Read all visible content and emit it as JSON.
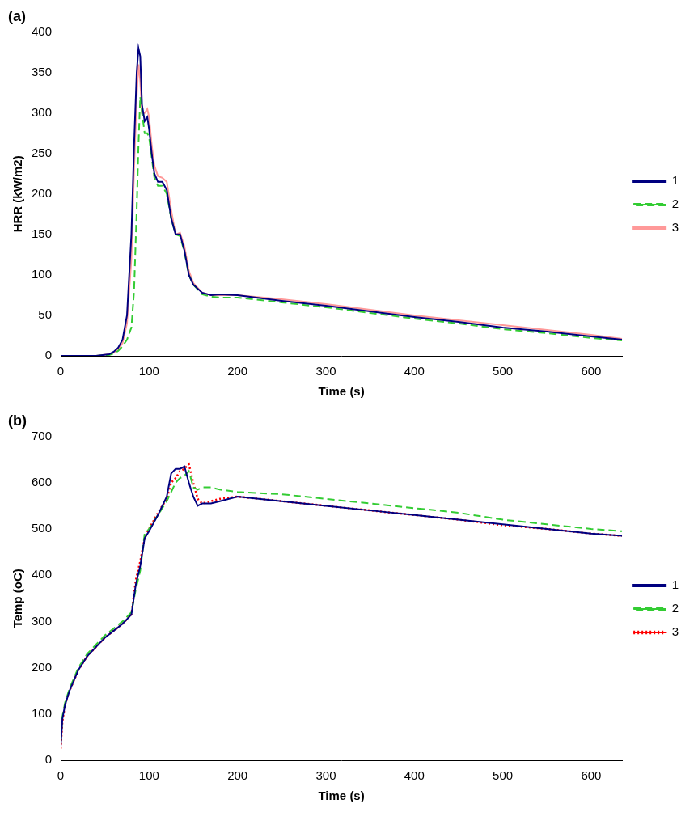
{
  "chart_data": [
    {
      "type": "line",
      "panel": "(a)",
      "x_label": "Time (s)",
      "y_label": "HRR (kW/m2)",
      "x": [
        0,
        20,
        40,
        55,
        60,
        65,
        70,
        75,
        80,
        83,
        86,
        88,
        90,
        92,
        95,
        98,
        100,
        103,
        106,
        110,
        115,
        120,
        125,
        130,
        135,
        140,
        145,
        150,
        160,
        170,
        180,
        200,
        250,
        300,
        350,
        400,
        450,
        500,
        550,
        600,
        635
      ],
      "series": [
        {
          "name": "1",
          "color": "#000080",
          "line_style": "solid",
          "values": [
            0,
            0,
            0,
            2,
            5,
            10,
            20,
            50,
            150,
            260,
            350,
            380,
            370,
            310,
            290,
            295,
            280,
            250,
            225,
            215,
            215,
            205,
            170,
            150,
            150,
            130,
            100,
            88,
            78,
            75,
            76,
            75,
            68,
            62,
            55,
            48,
            42,
            35,
            30,
            24,
            20
          ]
        },
        {
          "name": "2",
          "color": "#33cc33",
          "line_style": "dashed",
          "values": [
            0,
            0,
            0,
            1,
            3,
            6,
            12,
            20,
            35,
            80,
            180,
            260,
            320,
            300,
            275,
            275,
            270,
            245,
            220,
            210,
            210,
            200,
            170,
            150,
            148,
            128,
            100,
            88,
            76,
            73,
            72,
            72,
            66,
            60,
            53,
            46,
            40,
            33,
            28,
            22,
            19
          ]
        },
        {
          "name": "3",
          "color": "#ff9999",
          "line_style": "solid",
          "values": [
            0,
            0,
            0,
            2,
            4,
            8,
            16,
            40,
            120,
            230,
            320,
            360,
            340,
            300,
            300,
            305,
            295,
            260,
            235,
            222,
            220,
            215,
            180,
            150,
            152,
            135,
            105,
            90,
            78,
            75,
            75,
            75,
            70,
            64,
            57,
            50,
            44,
            38,
            32,
            26,
            21
          ]
        }
      ],
      "xlim": [
        0,
        635
      ],
      "xticks": [
        0,
        100,
        200,
        300,
        400,
        500,
        600
      ],
      "ylim": [
        0,
        400
      ],
      "yticks": [
        0,
        50,
        100,
        150,
        200,
        250,
        300,
        350,
        400
      ],
      "grid": false,
      "legend": "right"
    },
    {
      "type": "line",
      "panel": "(b)",
      "x_label": "Time (s)",
      "y_label": "Temp (oC)",
      "x": [
        0,
        2,
        5,
        10,
        20,
        30,
        40,
        50,
        60,
        70,
        80,
        85,
        90,
        95,
        100,
        110,
        120,
        125,
        130,
        135,
        140,
        145,
        150,
        155,
        160,
        170,
        180,
        200,
        250,
        300,
        350,
        400,
        450,
        500,
        550,
        600,
        635
      ],
      "series": [
        {
          "name": "1",
          "color": "#000080",
          "line_style": "solid",
          "values": [
            30,
            90,
            120,
            150,
            195,
            225,
            245,
            265,
            280,
            295,
            315,
            380,
            420,
            480,
            495,
            530,
            570,
            620,
            630,
            630,
            635,
            600,
            570,
            550,
            555,
            555,
            560,
            570,
            560,
            550,
            540,
            530,
            520,
            510,
            500,
            490,
            485
          ]
        },
        {
          "name": "2",
          "color": "#33cc33",
          "line_style": "dashed",
          "values": [
            40,
            95,
            125,
            155,
            200,
            230,
            250,
            270,
            285,
            300,
            320,
            370,
            410,
            490,
            500,
            530,
            560,
            580,
            600,
            610,
            615,
            625,
            590,
            585,
            590,
            590,
            585,
            580,
            575,
            565,
            555,
            545,
            535,
            520,
            510,
            500,
            495
          ]
        },
        {
          "name": "3",
          "color": "#ff0000",
          "line_style": "dotted",
          "values": [
            25,
            85,
            120,
            150,
            195,
            225,
            245,
            265,
            280,
            295,
            315,
            390,
            430,
            480,
            500,
            535,
            565,
            600,
            610,
            625,
            630,
            640,
            600,
            565,
            555,
            560,
            565,
            570,
            560,
            550,
            540,
            530,
            520,
            508,
            500,
            490,
            485
          ]
        }
      ],
      "xlim": [
        0,
        635
      ],
      "xticks": [
        0,
        100,
        200,
        300,
        400,
        500,
        600
      ],
      "ylim": [
        0,
        700
      ],
      "yticks": [
        0,
        100,
        200,
        300,
        400,
        500,
        600,
        700
      ],
      "grid": false,
      "legend": "right"
    }
  ]
}
